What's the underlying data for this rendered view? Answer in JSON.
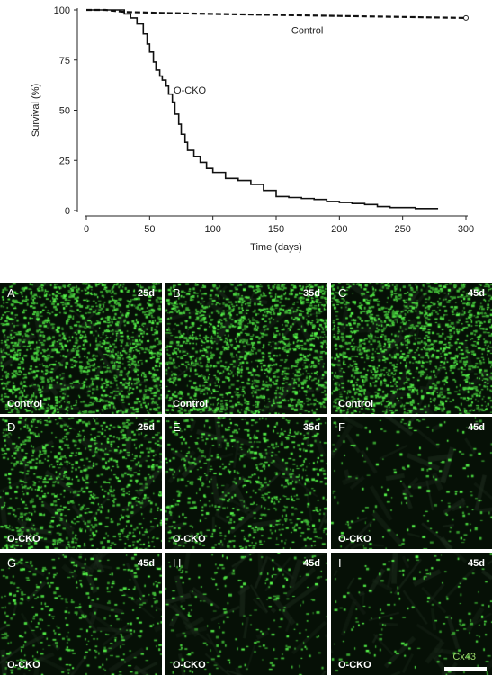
{
  "chart_data": {
    "type": "line",
    "xlabel": "Time (days)",
    "ylabel": "Survival (%)",
    "xlim": [
      0,
      300
    ],
    "ylim": [
      0,
      100
    ],
    "xticks": [
      "0",
      "50",
      "100",
      "150",
      "200",
      "250",
      "300"
    ],
    "yticks": [
      "0",
      "25",
      "50",
      "75",
      "100"
    ],
    "grid": false,
    "series": [
      {
        "name": "Control",
        "style": "dashed",
        "color": "#111111",
        "x": [
          0,
          15,
          30,
          60,
          100,
          150,
          200,
          250,
          300
        ],
        "y": [
          100,
          100,
          99,
          98.5,
          98,
          97.5,
          97,
          96.5,
          96
        ]
      },
      {
        "name": "O-CKO",
        "style": "solid",
        "color": "#111111",
        "x": [
          0,
          20,
          30,
          35,
          40,
          45,
          48,
          50,
          53,
          55,
          58,
          60,
          63,
          65,
          68,
          70,
          73,
          75,
          78,
          80,
          85,
          90,
          95,
          100,
          110,
          120,
          130,
          140,
          150,
          160,
          170,
          180,
          190,
          200,
          210,
          220,
          230,
          240,
          260,
          278
        ],
        "y": [
          100,
          100,
          98,
          96,
          93,
          88,
          83,
          79,
          74,
          70,
          67,
          65,
          62,
          58,
          54,
          48,
          43,
          38,
          34,
          30,
          27,
          24,
          21,
          19,
          16,
          15,
          13,
          10,
          7,
          6.5,
          6,
          5.5,
          4.5,
          4,
          3.5,
          3,
          2,
          1.5,
          1,
          1
        ]
      }
    ]
  },
  "panels": [
    {
      "letter": "A",
      "age": "25d",
      "condition": "Control",
      "density": 1.0
    },
    {
      "letter": "B",
      "age": "35d",
      "condition": "Control",
      "density": 1.0
    },
    {
      "letter": "C",
      "age": "45d",
      "condition": "Control",
      "density": 0.95
    },
    {
      "letter": "D",
      "age": "25d",
      "condition": "O-CKO",
      "density": 0.6
    },
    {
      "letter": "E",
      "age": "35d",
      "condition": "O-CKO",
      "density": 0.45
    },
    {
      "letter": "F",
      "age": "45d",
      "condition": "O-CKO",
      "density": 0.12
    },
    {
      "letter": "G",
      "age": "45d",
      "condition": "O-CKO",
      "density": 0.25
    },
    {
      "letter": "H",
      "age": "45d",
      "condition": "O-CKO",
      "density": 0.15
    },
    {
      "letter": "I",
      "age": "45d",
      "condition": "O-CKO",
      "density": 0.1
    }
  ],
  "marker_label": "Cx43",
  "colors": {
    "fluorescence": "#39d23a",
    "background": "#061006"
  }
}
